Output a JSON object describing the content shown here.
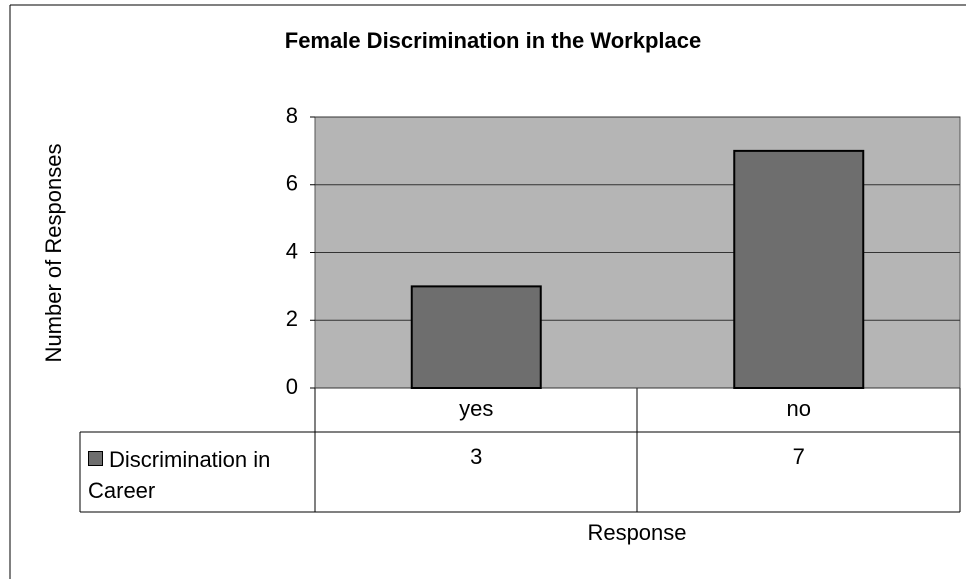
{
  "chart_data": {
    "type": "bar",
    "title": "Female Discrimination in the Workplace",
    "x_label": "Response",
    "y_label": "Number of Responses",
    "categories": [
      "yes",
      "no"
    ],
    "series": [
      {
        "name": "Discrimination in Career",
        "color": "#6e6e6e",
        "values": [
          3,
          7
        ]
      }
    ],
    "ylim": [
      0,
      8
    ],
    "yticks": [
      0,
      2,
      4,
      6,
      8
    ],
    "grid": true
  }
}
